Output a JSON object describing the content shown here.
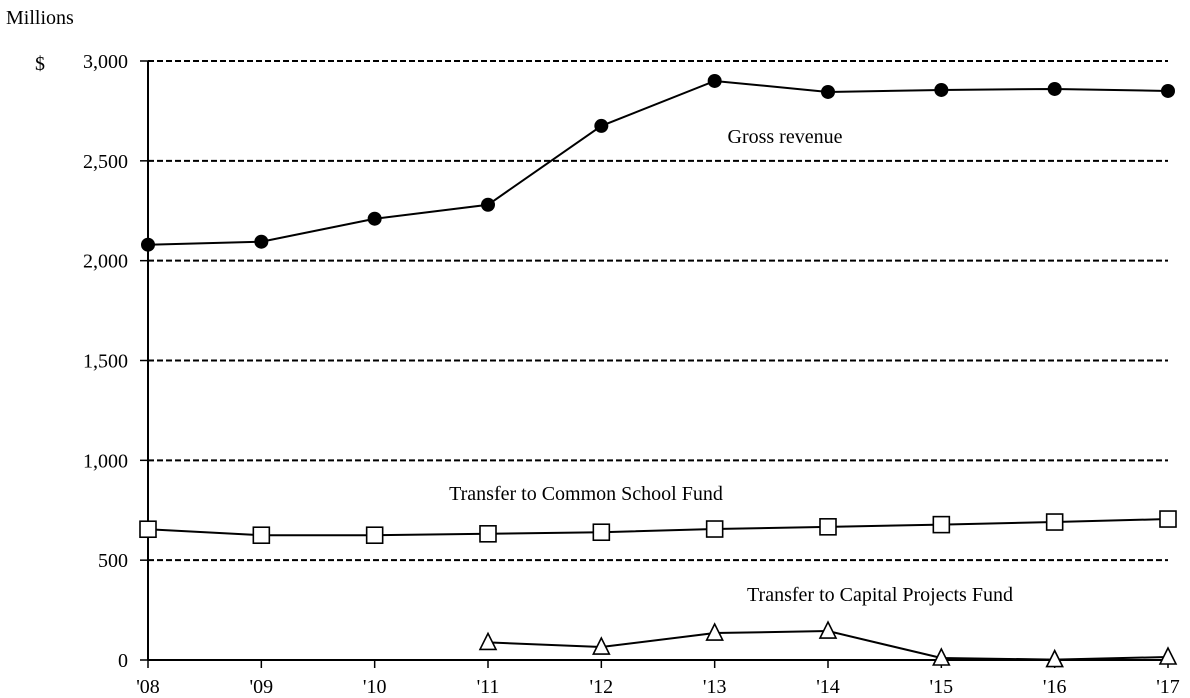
{
  "chart_data": {
    "type": "line",
    "y_unit_label": "Millions",
    "y_currency_label": "$",
    "categories": [
      "'08",
      "'09",
      "'10",
      "'11",
      "'12",
      "'13",
      "'14",
      "'15",
      "'16",
      "'17"
    ],
    "ylim": [
      0,
      3000
    ],
    "yticks": [
      0,
      500,
      1000,
      1500,
      2000,
      2500,
      3000
    ],
    "ytick_labels": [
      "0",
      "500",
      "1,000",
      "1,500",
      "2,000",
      "2,500",
      "3,000"
    ],
    "grid": "dashed horizontal",
    "series": [
      {
        "name": "Gross revenue",
        "marker": "filled-circle",
        "values": [
          2080,
          2095,
          2210,
          2280,
          2675,
          2900,
          2845,
          2855,
          2860,
          2850
        ]
      },
      {
        "name": "Transfer to Common School Fund",
        "marker": "open-square",
        "values": [
          655,
          625,
          625,
          632,
          640,
          656,
          667,
          678,
          691,
          706
        ]
      },
      {
        "name": "Transfer to Capital Projects Fund",
        "marker": "open-triangle",
        "values": [
          null,
          null,
          null,
          88,
          65,
          135,
          145,
          10,
          2,
          15
        ]
      }
    ]
  }
}
